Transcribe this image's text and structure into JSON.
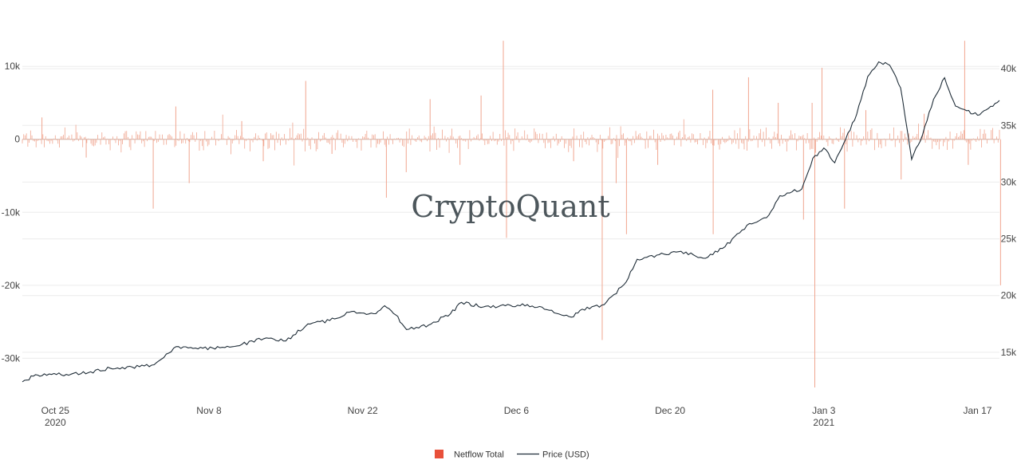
{
  "brand": "CryptoQuant",
  "colors": {
    "netflow": "#f0a58f",
    "netflow_legend": "#e8503a",
    "price": "#1f2d38",
    "grid": "#ececec",
    "zero": "#d9b3a7"
  },
  "chart_data": {
    "type": "bar+line",
    "x_range": [
      "2020-10-22",
      "2021-01-19"
    ],
    "x_ticks": [
      {
        "label": "Oct 25",
        "sublabel": "2020",
        "date": "2020-10-25"
      },
      {
        "label": "Nov 8",
        "sublabel": "",
        "date": "2020-11-08"
      },
      {
        "label": "Nov 22",
        "sublabel": "",
        "date": "2020-11-22"
      },
      {
        "label": "Dec 6",
        "sublabel": "",
        "date": "2020-12-06"
      },
      {
        "label": "Dec 20",
        "sublabel": "",
        "date": "2020-12-20"
      },
      {
        "label": "Jan 3",
        "sublabel": "2021",
        "date": "2021-01-03"
      },
      {
        "label": "Jan 17",
        "sublabel": "",
        "date": "2021-01-17"
      }
    ],
    "y_left": {
      "range": [
        -34000,
        14500
      ],
      "ticks": [
        {
          "value": 10000,
          "label": "10k"
        },
        {
          "value": 0,
          "label": "0"
        },
        {
          "value": -10000,
          "label": "-10k"
        },
        {
          "value": -20000,
          "label": "-20k"
        },
        {
          "value": -30000,
          "label": "-30k"
        }
      ]
    },
    "y_right": {
      "range": [
        11900,
        43100
      ],
      "ticks": [
        {
          "value": 40000,
          "label": "40k"
        },
        {
          "value": 35000,
          "label": "35k"
        },
        {
          "value": 30000,
          "label": "30k"
        },
        {
          "value": 25000,
          "label": "25k"
        },
        {
          "value": 20000,
          "label": "20k"
        },
        {
          "value": 15000,
          "label": "15k"
        }
      ]
    },
    "series": [
      {
        "name": "Netflow Total",
        "type": "bar",
        "axis": "left",
        "typical_amplitude": 1500,
        "spikes": [
          [
            "2020-10-24",
            3000
          ],
          [
            "2020-10-28",
            -2500
          ],
          [
            "2020-11-03",
            -9500
          ],
          [
            "2020-11-05",
            4500
          ],
          [
            "2020-11-06",
            -6000
          ],
          [
            "2020-11-11",
            2500
          ],
          [
            "2020-11-13",
            -3000
          ],
          [
            "2020-11-17",
            8000
          ],
          [
            "2020-11-19",
            -2000
          ],
          [
            "2020-11-24",
            -8000
          ],
          [
            "2020-11-26",
            -4500
          ],
          [
            "2020-11-28",
            5500
          ],
          [
            "2020-12-01",
            -3500
          ],
          [
            "2020-12-03",
            6000
          ],
          [
            "2020-12-05",
            13500
          ],
          [
            "2020-12-05",
            -13500
          ],
          [
            "2020-12-11",
            -3000
          ],
          [
            "2020-12-14",
            -27500
          ],
          [
            "2020-12-15",
            -6000
          ],
          [
            "2020-12-16",
            -13000
          ],
          [
            "2020-12-19",
            -3500
          ],
          [
            "2020-12-24",
            -13000
          ],
          [
            "2020-12-24",
            6800
          ],
          [
            "2020-12-27",
            8500
          ],
          [
            "2020-12-30",
            5000
          ],
          [
            "2021-01-01",
            -11000
          ],
          [
            "2021-01-02",
            -34000
          ],
          [
            "2021-01-02",
            5000
          ],
          [
            "2021-01-03",
            9800
          ],
          [
            "2021-01-05",
            -9500
          ],
          [
            "2021-01-07",
            4000
          ],
          [
            "2021-01-10",
            -5500
          ],
          [
            "2021-01-12",
            3500
          ],
          [
            "2021-01-16",
            13500
          ],
          [
            "2021-01-16",
            -3500
          ],
          [
            "2021-01-19",
            -20000
          ]
        ]
      },
      {
        "name": "Price (USD)",
        "type": "line",
        "axis": "right",
        "points": [
          [
            "2020-10-22",
            12400
          ],
          [
            "2020-10-23",
            12900
          ],
          [
            "2020-10-24",
            13100
          ],
          [
            "2020-10-26",
            13050
          ],
          [
            "2020-10-28",
            13200
          ],
          [
            "2020-10-30",
            13600
          ],
          [
            "2020-11-01",
            13700
          ],
          [
            "2020-11-03",
            13900
          ],
          [
            "2020-11-05",
            15500
          ],
          [
            "2020-11-07",
            15300
          ],
          [
            "2020-11-09",
            15400
          ],
          [
            "2020-11-11",
            15700
          ],
          [
            "2020-11-13",
            16200
          ],
          [
            "2020-11-15",
            16000
          ],
          [
            "2020-11-17",
            17500
          ],
          [
            "2020-11-19",
            17800
          ],
          [
            "2020-11-21",
            18600
          ],
          [
            "2020-11-23",
            18400
          ],
          [
            "2020-11-24",
            19100
          ],
          [
            "2020-11-25",
            18300
          ],
          [
            "2020-11-26",
            17000
          ],
          [
            "2020-11-28",
            17400
          ],
          [
            "2020-11-30",
            18400
          ],
          [
            "2020-12-01",
            19400
          ],
          [
            "2020-12-03",
            19000
          ],
          [
            "2020-12-05",
            19100
          ],
          [
            "2020-12-07",
            19200
          ],
          [
            "2020-12-09",
            18700
          ],
          [
            "2020-12-11",
            18100
          ],
          [
            "2020-12-12",
            18800
          ],
          [
            "2020-12-14",
            19200
          ],
          [
            "2020-12-16",
            21200
          ],
          [
            "2020-12-17",
            23200
          ],
          [
            "2020-12-19",
            23600
          ],
          [
            "2020-12-21",
            23900
          ],
          [
            "2020-12-23",
            23300
          ],
          [
            "2020-12-25",
            24300
          ],
          [
            "2020-12-27",
            26200
          ],
          [
            "2020-12-29",
            27100
          ],
          [
            "2020-12-30",
            28800
          ],
          [
            "2021-01-01",
            29400
          ],
          [
            "2021-01-02",
            32100
          ],
          [
            "2021-01-03",
            33000
          ],
          [
            "2021-01-04",
            31700
          ],
          [
            "2021-01-05",
            33800
          ],
          [
            "2021-01-06",
            36000
          ],
          [
            "2021-01-07",
            39300
          ],
          [
            "2021-01-08",
            40600
          ],
          [
            "2021-01-09",
            40300
          ],
          [
            "2021-01-10",
            38300
          ],
          [
            "2021-01-11",
            32000
          ],
          [
            "2021-01-12",
            34200
          ],
          [
            "2021-01-13",
            37300
          ],
          [
            "2021-01-14",
            39200
          ],
          [
            "2021-01-15",
            36700
          ],
          [
            "2021-01-16",
            36300
          ],
          [
            "2021-01-17",
            35900
          ],
          [
            "2021-01-18",
            36500
          ],
          [
            "2021-01-19",
            37200
          ]
        ]
      }
    ],
    "legend": {
      "position": "bottom-center",
      "entries": [
        "Netflow Total",
        "Price (USD)"
      ]
    },
    "grid": true
  }
}
